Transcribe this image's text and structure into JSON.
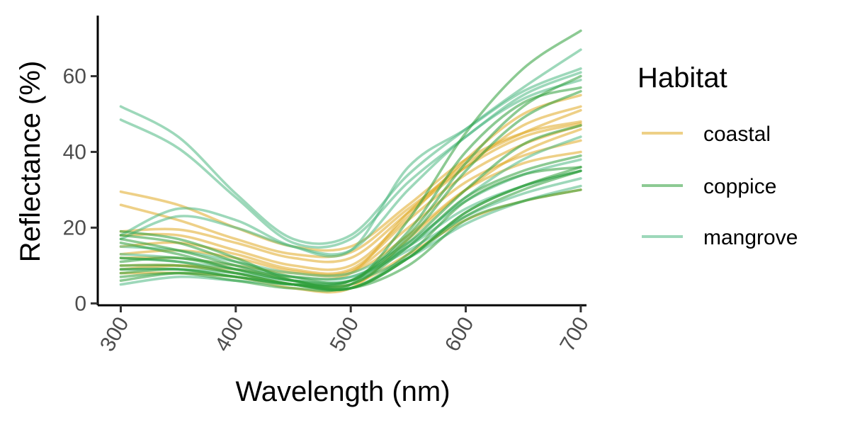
{
  "chart_data": {
    "type": "line",
    "xlabel": "Wavelength (nm)",
    "ylabel": "Reflectance (%)",
    "xlim": [
      280,
      705
    ],
    "ylim": [
      -0.5,
      76
    ],
    "x_ticks": [
      300,
      400,
      500,
      600,
      700
    ],
    "y_ticks": [
      0,
      20,
      40,
      60
    ],
    "grid": false,
    "legend": {
      "title": "Habitat",
      "placement": "right"
    },
    "colors": {
      "coastal": "#E0A924",
      "coppice": "#2E9F3A",
      "mangrove": "#4DB882"
    },
    "x": [
      300,
      350,
      400,
      450,
      500,
      550,
      600,
      650,
      700
    ],
    "series": [
      {
        "name": "coastal",
        "group": "coastal",
        "values": [
          29.5,
          26,
          20,
          15,
          15,
          26,
          38,
          45,
          48
        ]
      },
      {
        "group": "coastal",
        "values": [
          26,
          22,
          17,
          13,
          13.5,
          25,
          36,
          44,
          47.5
        ]
      },
      {
        "group": "coastal",
        "values": [
          19,
          19.5,
          16,
          12,
          12,
          24,
          36,
          47,
          52
        ]
      },
      {
        "group": "coastal",
        "values": [
          18,
          18,
          14,
          10,
          10,
          23,
          38,
          50,
          55
        ]
      },
      {
        "group": "coastal",
        "values": [
          15,
          16,
          13,
          9,
          9,
          22,
          34,
          42,
          47
        ]
      },
      {
        "group": "coastal",
        "values": [
          13,
          14,
          12,
          8.5,
          8.5,
          20,
          32,
          39,
          43
        ]
      },
      {
        "group": "coastal",
        "values": [
          12,
          12,
          10,
          8,
          8,
          18,
          30,
          37,
          40
        ]
      },
      {
        "group": "coastal",
        "values": [
          10,
          10,
          8,
          5,
          5,
          13,
          22,
          27,
          30
        ]
      },
      {
        "group": "coastal",
        "values": [
          8,
          8,
          7,
          4,
          4,
          17,
          30,
          40,
          46
        ]
      },
      {
        "group": "coastal",
        "values": [
          9,
          10,
          9,
          7,
          8,
          24,
          37,
          45,
          51
        ]
      },
      {
        "name": "coppice",
        "group": "coppice",
        "values": [
          19,
          17,
          12,
          6,
          5,
          16,
          30,
          42,
          47
        ]
      },
      {
        "group": "coppice",
        "values": [
          18,
          16,
          11,
          7,
          6,
          17,
          35,
          49,
          56
        ]
      },
      {
        "group": "coppice",
        "values": [
          17,
          14,
          10,
          6,
          4,
          12,
          24,
          31,
          36
        ]
      },
      {
        "group": "coppice",
        "values": [
          16,
          13,
          9,
          6,
          5,
          15,
          28,
          35,
          39
        ]
      },
      {
        "group": "coppice",
        "values": [
          12,
          11,
          8,
          5,
          4,
          12,
          23,
          30,
          35
        ]
      },
      {
        "group": "coppice",
        "values": [
          10,
          10,
          8,
          5,
          4,
          13,
          27,
          34,
          36
        ]
      },
      {
        "group": "coppice",
        "values": [
          9,
          9,
          7,
          5,
          4,
          12,
          24,
          31,
          35
        ]
      },
      {
        "group": "coppice",
        "values": [
          8,
          9,
          7,
          5,
          4,
          10,
          22,
          27,
          30
        ]
      },
      {
        "group": "coppice",
        "values": [
          7,
          8,
          6,
          4,
          5,
          22,
          45,
          62,
          72
        ]
      },
      {
        "group": "coppice",
        "values": [
          6,
          8,
          7,
          5,
          6,
          19,
          40,
          53,
          57
        ]
      },
      {
        "group": "coppice",
        "values": [
          11,
          12,
          9,
          6,
          6,
          18,
          37,
          52,
          60
        ]
      },
      {
        "name": "mangrove",
        "group": "mangrove",
        "values": [
          52,
          44,
          29,
          17,
          18,
          34,
          46,
          57,
          67
        ]
      },
      {
        "group": "mangrove",
        "values": [
          48.5,
          41,
          28,
          16,
          17,
          32,
          44,
          55,
          61
        ]
      },
      {
        "group": "mangrove",
        "values": [
          18,
          25,
          22,
          15,
          14,
          36,
          46,
          56,
          62
        ]
      },
      {
        "group": "mangrove",
        "values": [
          17,
          23,
          20,
          15,
          14,
          30,
          44,
          54,
          59
        ]
      },
      {
        "group": "mangrove",
        "values": [
          15,
          14,
          11,
          8,
          8,
          16,
          27,
          34,
          38
        ]
      },
      {
        "group": "mangrove",
        "values": [
          13,
          12,
          10,
          7,
          7,
          15,
          25,
          31,
          35
        ]
      },
      {
        "group": "mangrove",
        "values": [
          12,
          11,
          9,
          7,
          7,
          14,
          23,
          29,
          33
        ]
      },
      {
        "group": "mangrove",
        "values": [
          9,
          9,
          8,
          6,
          6,
          12,
          21,
          27,
          31
        ]
      },
      {
        "group": "mangrove",
        "values": [
          5,
          7,
          6,
          5,
          6,
          15,
          28,
          38,
          44
        ]
      }
    ]
  }
}
